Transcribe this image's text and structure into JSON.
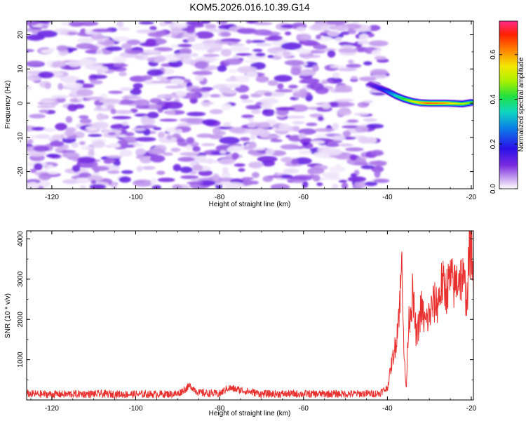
{
  "title": "KOM5.2026.016.10.39.G14",
  "chart_data": [
    {
      "type": "heatmap",
      "title": "KOM5.2026.016.10.39.G14",
      "xlabel": "Height of straight line (km)",
      "ylabel": "Frequency (Hz)",
      "xlim": [
        -126,
        -19.5
      ],
      "ylim": [
        -25,
        24
      ],
      "xticks": [
        -120,
        -100,
        -80,
        -60,
        -40,
        -20
      ],
      "yticks": [
        -20,
        -10,
        0,
        10,
        20
      ],
      "xtick_labels": [
        "-120",
        "-100",
        "-80",
        "-60",
        "-40",
        "-20"
      ],
      "ytick_labels": [
        "-20",
        "-10",
        "0",
        "10",
        "20"
      ],
      "description_series": [
        {
          "name": "noise",
          "x_range": [
            -126,
            -41
          ],
          "y_range": [
            -25,
            24
          ],
          "amplitude_max": 0.12
        },
        {
          "name": "signal",
          "x": [
            -44,
            -42,
            -40,
            -38,
            -36,
            -34,
            -32,
            -30,
            -28,
            -26,
            -24,
            -22,
            -20
          ],
          "y": [
            5.5,
            4.5,
            3.5,
            2.2,
            1.2,
            0.5,
            0.1,
            0.0,
            0.0,
            0.0,
            -0.1,
            -0.2,
            0.2
          ],
          "amplitude": [
            0.1,
            0.15,
            0.22,
            0.35,
            0.45,
            0.55,
            0.65,
            0.72,
            0.7,
            0.68,
            0.6,
            0.55,
            0.5
          ]
        }
      ],
      "colorbar": {
        "label": "Normalized spectral amplitude",
        "range": [
          0,
          0.75
        ],
        "ticks": [
          0,
          0.2,
          0.4,
          0.6
        ],
        "tick_labels": [
          "0.0",
          "0.2",
          "0.4",
          "0.6"
        ]
      }
    },
    {
      "type": "line",
      "xlabel": "Height of straight line (km)",
      "ylabel": "SNR (10 * v/v)",
      "xlim": [
        -126,
        -19.5
      ],
      "ylim": [
        0,
        4200
      ],
      "xticks": [
        -120,
        -100,
        -80,
        -60,
        -40,
        -20
      ],
      "yticks": [
        1000,
        2000,
        3000,
        4000
      ],
      "xtick_labels": [
        "-120",
        "-100",
        "-80",
        "-60",
        "-40",
        "-20"
      ],
      "ytick_labels": [
        "1000",
        "2000",
        "3000",
        "4000"
      ],
      "series": [
        {
          "name": "SNR",
          "color": "#e8302e",
          "x": [
            -126,
            -120,
            -110,
            -100,
            -90,
            -87,
            -85,
            -80,
            -78,
            -70,
            -60,
            -50,
            -42,
            -40,
            -39,
            -38,
            -37,
            -36.5,
            -36,
            -35.5,
            -35,
            -34,
            -33,
            -32,
            -31,
            -30,
            -29,
            -28,
            -27,
            -26,
            -25,
            -24,
            -23,
            -22,
            -21,
            -20.5,
            -20,
            -19.5
          ],
          "y": [
            150,
            140,
            150,
            140,
            150,
            350,
            180,
            150,
            300,
            150,
            150,
            150,
            160,
            300,
            900,
            1400,
            2500,
            3500,
            1000,
            250,
            1900,
            2600,
            1500,
            2300,
            1900,
            2100,
            2400,
            2400,
            2900,
            2700,
            3000,
            2800,
            3100,
            3000,
            2500,
            3600,
            4100,
            2500
          ]
        }
      ]
    }
  ]
}
